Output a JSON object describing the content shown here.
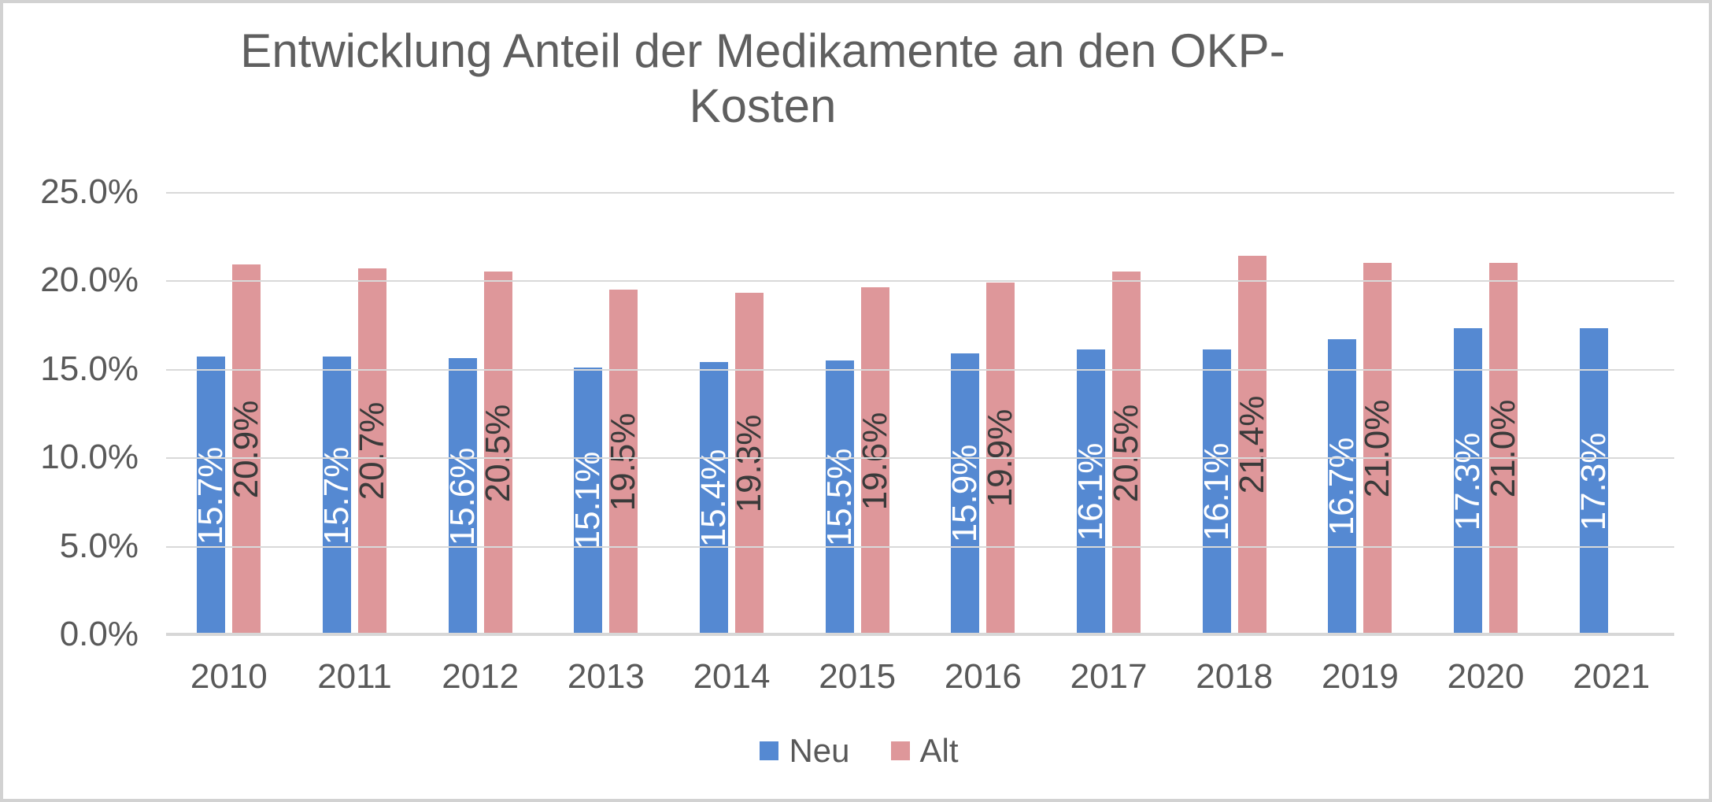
{
  "title": {
    "line1": "Entwicklung Anteil der Medikamente an den OKP-",
    "line2": "Kosten"
  },
  "chart_data": {
    "type": "bar",
    "title": "Entwicklung Anteil der Medikamente an den OKP-Kosten",
    "categories": [
      "2010",
      "2011",
      "2012",
      "2013",
      "2014",
      "2015",
      "2016",
      "2017",
      "2018",
      "2019",
      "2020",
      "2021"
    ],
    "series": [
      {
        "name": "Neu",
        "color": "#5589d2",
        "label_color": "#ffffff",
        "values": [
          15.7,
          15.7,
          15.6,
          15.1,
          15.4,
          15.5,
          15.9,
          16.1,
          16.1,
          16.7,
          17.3,
          17.3
        ],
        "labels": [
          "15.7%",
          "15.7%",
          "15.6%",
          "15.1%",
          "15.4%",
          "15.5%",
          "15.9%",
          "16.1%",
          "16.1%",
          "16.7%",
          "17.3%",
          "17.3%"
        ]
      },
      {
        "name": "Alt",
        "color": "#de979a",
        "label_color": "#3a3a3a",
        "values": [
          20.9,
          20.7,
          20.5,
          19.5,
          19.3,
          19.6,
          19.9,
          20.5,
          21.4,
          21.0,
          21.0,
          null
        ],
        "labels": [
          "20.9%",
          "20.7%",
          "20.5%",
          "19.5%",
          "19.3%",
          "19.6%",
          "19.9%",
          "20.5%",
          "21.4%",
          "21.0%",
          "21.0%",
          null
        ]
      }
    ],
    "ylim": [
      0,
      25
    ],
    "y_ticks": [
      "25.0%",
      "20.0%",
      "15.0%",
      "10.0%",
      "5.0%",
      "0.0%"
    ],
    "xlabel": "",
    "ylabel": "",
    "grid": true,
    "legend_position": "bottom"
  },
  "legend": {
    "items": [
      {
        "label": "Neu",
        "color": "#5589d2"
      },
      {
        "label": "Alt",
        "color": "#de979a"
      }
    ]
  },
  "colors": {
    "title_text": "#5f5f5f",
    "axis_text": "#595959",
    "gridline": "#d9d9d9",
    "baseline": "#d7d7d7",
    "border": "#d2d2d2"
  }
}
